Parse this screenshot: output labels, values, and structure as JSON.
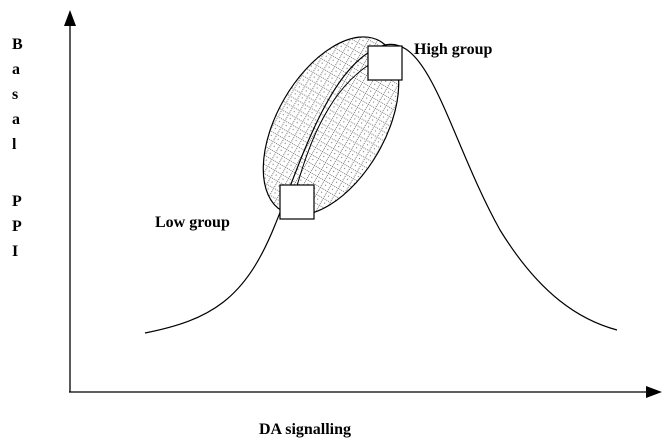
{
  "y_axis_label": [
    "Basal",
    "PPI"
  ],
  "x_axis_label": "DA signalling",
  "labels": {
    "high": "High group",
    "low": "Low group"
  }
}
